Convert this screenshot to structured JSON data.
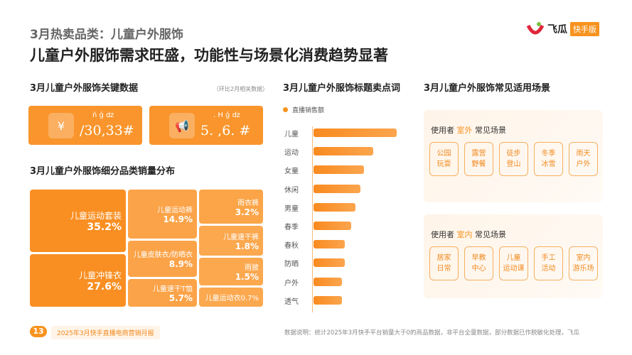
{
  "header": {
    "subtitle": "3月热卖品类：儿童户外服饰",
    "title": "儿童户外服饰需求旺盛，功能性与场景化消费趋势显著",
    "logo_text": "飞瓜",
    "logo_badge": "快手版"
  },
  "key_data": {
    "title": "3月儿童户外服饰关键数据",
    "note": "（环比2月相关数据）",
    "cards": [
      {
        "icon": "yen-coin-icon",
        "label": "ǹ  ǵ ǳ",
        "value": "/30,33#"
      },
      {
        "icon": "megaphone-icon",
        "label": ". H  ǵ ǳ",
        "value": "5. ,6. #"
      }
    ]
  },
  "treemap": {
    "title": "3月儿童户外服饰细分品类销量分布",
    "items": [
      {
        "name": "儿童运动套装",
        "pct": "35.2%"
      },
      {
        "name": "儿童冲锋衣",
        "pct": "27.6%"
      },
      {
        "name": "儿童运动裤",
        "pct": "14.9%"
      },
      {
        "name": "儿童皮肤衣/防晒衣",
        "pct": "8.9%"
      },
      {
        "name": "儿童速干T恤",
        "pct": "5.7%"
      },
      {
        "name": "雨衣裤",
        "pct": "3.2%"
      },
      {
        "name": "儿童速干裤",
        "pct": "1.8%"
      },
      {
        "name": "雨披",
        "pct": "1.5%"
      },
      {
        "name": "儿童运动衣",
        "pct": "0.7%"
      }
    ]
  },
  "chart_data": {
    "type": "bar",
    "title": "3月儿童户外服饰标题卖点词",
    "legend": "直播销售额",
    "categories": [
      "儿童",
      "运动",
      "女童",
      "休闲",
      "男童",
      "春季",
      "春秋",
      "防晒",
      "户外",
      "透气"
    ],
    "values": [
      100,
      72,
      61,
      56,
      50,
      45,
      38,
      38,
      34,
      34
    ],
    "orientation": "horizontal",
    "color": "#f7931e"
  },
  "scenes": {
    "title": "3月儿童户外服饰常见适用场景",
    "outdoor": {
      "prefix": "使用者",
      "highlight": "室外",
      "suffix": "常见场景",
      "items": [
        "公园\n玩耍",
        "露营\n野餐",
        "徒步\n登山",
        "冬季\n冰雪",
        "雨天\n户外"
      ]
    },
    "indoor": {
      "prefix": "使用者",
      "highlight": "室内",
      "suffix": "常见场景",
      "items": [
        "居家\n日常",
        "早教\n中心",
        "儿童\n运动课",
        "手工\n活动",
        "室内\n游乐场"
      ]
    }
  },
  "footer": {
    "page": "13",
    "report": "2025年3月快手直播电商营销月报",
    "note": "数据说明：统计2025年3月快手平台销量大于0的商品数据，非平台全量数据，部分数据已作脱敏化处理，飞瓜"
  }
}
